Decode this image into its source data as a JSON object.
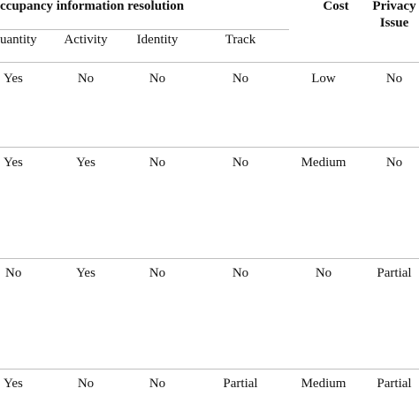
{
  "header": {
    "group_title": "ccupancy information resolution",
    "cost": "Cost",
    "privacy_line1": "Privacy",
    "privacy_line2": "Issue",
    "columns": [
      "uantity",
      "Activity",
      "Identity",
      "Track"
    ]
  },
  "rows": [
    [
      "Yes",
      "No",
      "No",
      "No",
      "Low",
      "No"
    ],
    [
      "Yes",
      "Yes",
      "No",
      "No",
      "Medium",
      "No"
    ],
    [
      "No",
      "Yes",
      "No",
      "No",
      "No",
      "Partial"
    ],
    [
      "Yes",
      "No",
      "No",
      "Partial",
      "Medium",
      "Partial"
    ]
  ]
}
